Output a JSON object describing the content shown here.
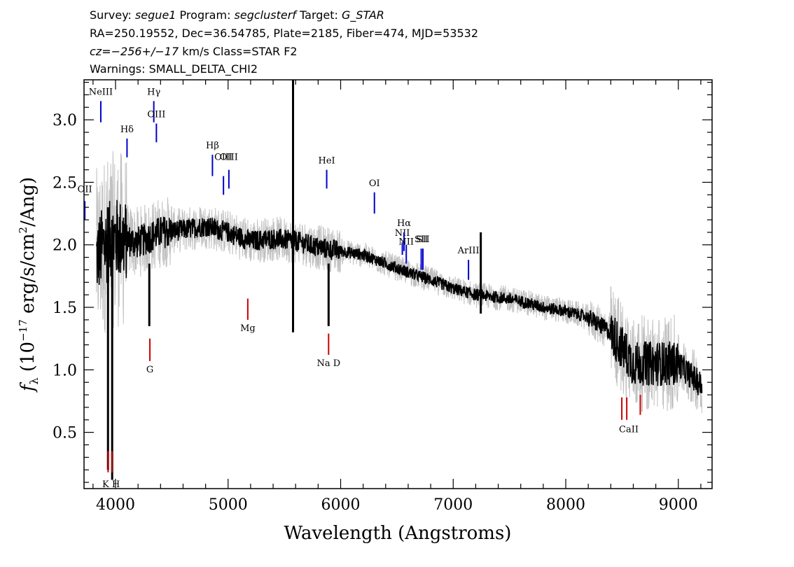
{
  "header": {
    "line1": {
      "prefix": "Survey: ",
      "survey": "segue1",
      "mid": " Program: ",
      "program": "segclusterf",
      "mid2": " Target: ",
      "target": "G_STAR"
    },
    "line2": "RA=250.19552, Dec=36.54785, Plate=2185, Fiber=474, MJD=53532",
    "line3": {
      "cz": "cz",
      "eq": "=",
      "value": "−256+/−17",
      "rest": " km/s Class=STAR F2"
    },
    "line4": "Warnings: SMALL_DELTA_CHI2"
  },
  "colors": {
    "flux": "#000000",
    "error": "#c0c0c0",
    "emission": "#0000cc",
    "absorption": "#cc0000",
    "frame": "#000000"
  },
  "chart_data": {
    "type": "line",
    "xlabel": "Wavelength (Angstroms)",
    "ylabel": "f_λ (10^-17 erg/s/cm^2/Ang)",
    "ylabel_parts": {
      "f": "f",
      "sub": "λ",
      "open": " (10",
      "exp1": "−17",
      "mid": " erg/s/cm",
      "exp2": "2",
      "close": "/Ang)"
    },
    "xlim": [
      3720,
      9300
    ],
    "ylim": [
      0.05,
      3.32
    ],
    "xticks": [
      4000,
      5000,
      6000,
      7000,
      8000,
      9000
    ],
    "xtick_labels": [
      "4000",
      "5000",
      "6000",
      "7000",
      "8000",
      "9000"
    ],
    "yticks": [
      0.5,
      1.0,
      1.5,
      2.0,
      2.5,
      3.0
    ],
    "ytick_labels": [
      "0.5",
      "1.0",
      "1.5",
      "2.0",
      "2.5",
      "3.0"
    ],
    "continuum": {
      "x": [
        3830,
        3900,
        4000,
        4200,
        4400,
        4600,
        4800,
        5000,
        5200,
        5400,
        5600,
        5800,
        6000,
        6200,
        6400,
        6600,
        6800,
        7000,
        7200,
        7400,
        7600,
        7800,
        8000,
        8200,
        8400,
        8600,
        8800,
        9000,
        9200
      ],
      "y": [
        1.9,
        2.0,
        2.05,
        2.02,
        2.1,
        2.12,
        2.15,
        2.1,
        2.03,
        2.05,
        2.03,
        1.98,
        1.95,
        1.92,
        1.85,
        1.78,
        1.72,
        1.65,
        1.6,
        1.58,
        1.55,
        1.5,
        1.47,
        1.42,
        1.3,
        1.05,
        1.05,
        1.05,
        0.88
      ]
    },
    "spikes": [
      {
        "x": 5577,
        "y_top": 3.32,
        "y_bottom": 1.3
      },
      {
        "x": 7245,
        "y_top": 2.1,
        "y_bottom": 1.45
      },
      {
        "x": 5893,
        "y_top": 1.85,
        "y_bottom": 1.35
      },
      {
        "x": 4300,
        "y_top": 1.85,
        "y_bottom": 1.35
      },
      {
        "x": 3970,
        "y_top": 2.2,
        "y_bottom": 0.12
      },
      {
        "x": 3933,
        "y_top": 2.3,
        "y_bottom": 0.2
      }
    ],
    "emission_lines": [
      {
        "label": "NeIII",
        "x": 3869,
        "y_bottom": 2.98,
        "y_top": 3.15,
        "label_y": 3.2
      },
      {
        "label": "Hγ",
        "x": 4340,
        "y_bottom": 2.98,
        "y_top": 3.15,
        "label_y": 3.2
      },
      {
        "label": "OIII",
        "x": 4363,
        "y_bottom": 2.82,
        "y_top": 2.97,
        "label_y": 3.02
      },
      {
        "label": "Hδ",
        "x": 4102,
        "y_bottom": 2.7,
        "y_top": 2.85,
        "label_y": 2.9
      },
      {
        "label": "Hβ",
        "x": 4861,
        "y_bottom": 2.55,
        "y_top": 2.72,
        "label_y": 2.77
      },
      {
        "label": "OIII",
        "x": 4959,
        "y_bottom": 2.4,
        "y_top": 2.55,
        "label_y": 2.68
      },
      {
        "label": "OIII",
        "x": 5007,
        "y_bottom": 2.45,
        "y_top": 2.6,
        "label_y": 2.68
      },
      {
        "label": "HeI",
        "x": 5876,
        "y_bottom": 2.45,
        "y_top": 2.6,
        "label_y": 2.65
      },
      {
        "label": "OI",
        "x": 6300,
        "y_bottom": 2.25,
        "y_top": 2.42,
        "label_y": 2.47
      },
      {
        "label": "OII",
        "x": 3727,
        "y_bottom": 2.2,
        "y_top": 2.35,
        "label_y": 2.42
      },
      {
        "label": "NII",
        "x": 6548,
        "y_bottom": 1.92,
        "y_top": 2.02,
        "label_y": 2.07
      },
      {
        "label": "Hα",
        "x": 6563,
        "y_bottom": 1.95,
        "y_top": 2.1,
        "label_y": 2.15
      },
      {
        "label": "NII",
        "x": 6583,
        "y_bottom": 1.85,
        "y_top": 2.0,
        "label_y": 2.0
      },
      {
        "label": "SII",
        "x": 6716,
        "y_bottom": 1.8,
        "y_top": 1.97,
        "label_y": 2.02
      },
      {
        "label": "SII",
        "x": 6731,
        "y_bottom": 1.8,
        "y_top": 1.97,
        "label_y": 2.02
      },
      {
        "label": "ArIII",
        "x": 7136,
        "y_bottom": 1.72,
        "y_top": 1.88,
        "label_y": 1.93
      }
    ],
    "absorption_lines": [
      {
        "label": "K",
        "x": 3934,
        "y_bottom": 0.18,
        "y_top": 0.35,
        "label_y": 0.06
      },
      {
        "label": "H",
        "x": 3969,
        "y_bottom": 0.18,
        "y_top": 0.35,
        "label_y": 0.06
      },
      {
        "label": "G",
        "x": 4305,
        "y_bottom": 1.07,
        "y_top": 1.25,
        "label_y": 1.0
      },
      {
        "label": "Mg",
        "x": 5175,
        "y_bottom": 1.4,
        "y_top": 1.57,
        "label_y": 1.33
      },
      {
        "label": "Na",
        "x": 5893,
        "y_bottom": 1.12,
        "y_top": 1.29,
        "label_y": 1.05
      },
      {
        "label": "D",
        "x": 5990,
        "y_bottom": null,
        "y_top": null,
        "label_y": 1.05
      },
      {
        "label": "CaII",
        "x": 8498,
        "y_bottom": 0.6,
        "y_top": 0.78,
        "label_y": 0.53
      },
      {
        "label": "CaII",
        "x": 8542,
        "y_bottom": 0.6,
        "y_top": 0.78,
        "label_y": 0.53
      },
      {
        "label": "CaII",
        "x": 8662,
        "y_bottom": 0.64,
        "y_top": 0.8,
        "label_y": 0.53
      }
    ],
    "absorption_label_text": [
      {
        "text": "K H",
        "x": 3960,
        "label_y": 0.06
      },
      {
        "text": "G",
        "x": 4305,
        "label_y": 0.98
      },
      {
        "text": "Mg",
        "x": 5175,
        "label_y": 1.31
      },
      {
        "text": "Na  D",
        "x": 5893,
        "label_y": 1.03
      },
      {
        "text": "CaII",
        "x": 8560,
        "label_y": 0.5
      }
    ],
    "noise_seed": 12345
  }
}
